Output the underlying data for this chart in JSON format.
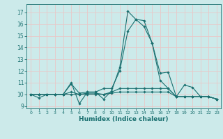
{
  "xlabel": "Humidex (Indice chaleur)",
  "ylabel": "",
  "xlim": [
    -0.5,
    23.5
  ],
  "ylim": [
    8.8,
    17.7
  ],
  "yticks": [
    9,
    10,
    11,
    12,
    13,
    14,
    15,
    16,
    17
  ],
  "xticks": [
    0,
    1,
    2,
    3,
    4,
    5,
    6,
    7,
    8,
    9,
    10,
    11,
    12,
    13,
    14,
    15,
    16,
    17,
    18,
    19,
    20,
    21,
    22,
    23
  ],
  "bg_color": "#cceaea",
  "grid_color": "#e8c8c8",
  "line_color": "#1a7070",
  "series": [
    [
      10,
      9.7,
      10,
      10,
      10,
      11,
      9.2,
      10.2,
      10.2,
      9.6,
      10.3,
      12.3,
      17.1,
      16.4,
      15.8,
      14.4,
      11.8,
      11.9,
      9.8,
      10.8,
      10.6,
      9.8,
      9.8,
      9.6
    ],
    [
      10,
      10,
      10,
      10,
      10,
      10.9,
      10.1,
      10.2,
      10.2,
      10.5,
      10.5,
      12.0,
      15.4,
      16.4,
      16.3,
      14.4,
      11.2,
      10.5,
      9.8,
      9.8,
      9.8,
      9.8,
      9.8,
      9.6
    ],
    [
      10,
      10,
      10,
      10,
      10,
      10.2,
      10.0,
      10.1,
      10.1,
      10.0,
      10.2,
      10.5,
      10.5,
      10.5,
      10.5,
      10.5,
      10.5,
      10.5,
      9.8,
      9.8,
      9.8,
      9.8,
      9.8,
      9.6
    ],
    [
      10,
      10,
      10,
      10,
      10,
      10.0,
      10.0,
      10.0,
      10.0,
      10.0,
      10.1,
      10.2,
      10.2,
      10.2,
      10.2,
      10.2,
      10.2,
      10.2,
      9.8,
      9.8,
      9.8,
      9.8,
      9.8,
      9.6
    ]
  ]
}
